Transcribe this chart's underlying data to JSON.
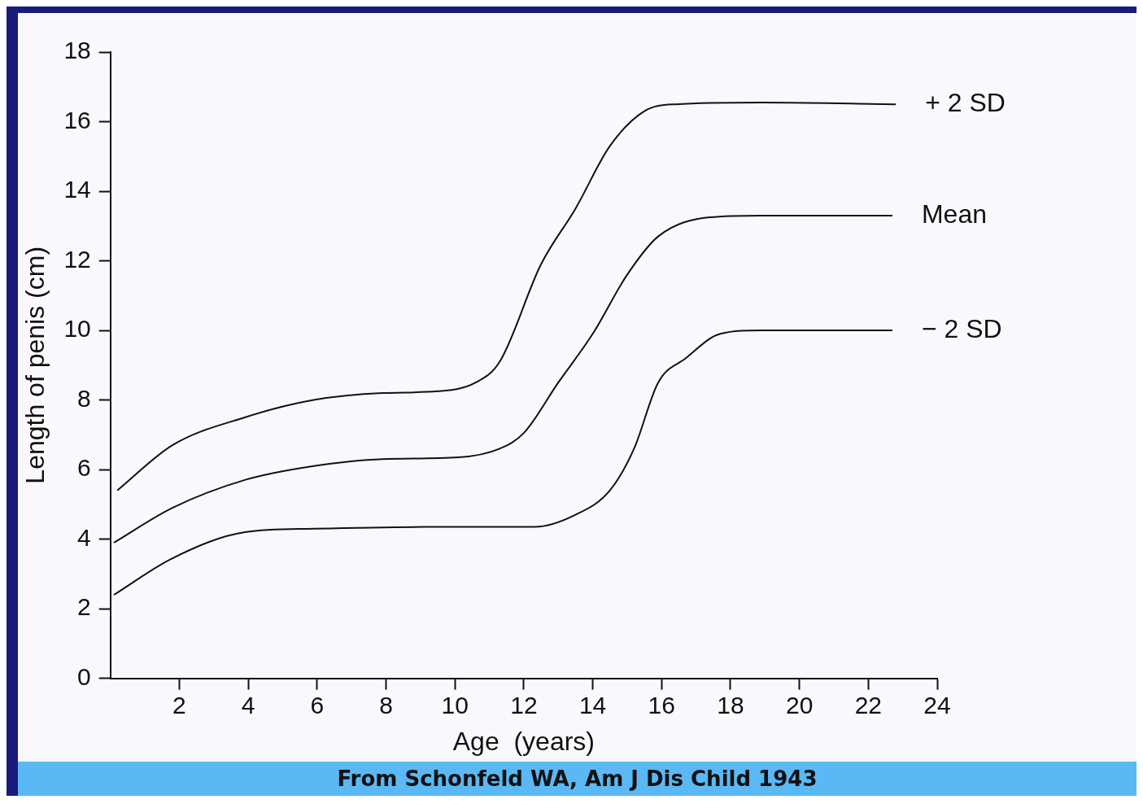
{
  "chart_data": {
    "type": "line",
    "xlabel": "Age  (years)",
    "ylabel": "Length of penis (cm)",
    "xlim": [
      0,
      24
    ],
    "xticks": [
      2,
      4,
      6,
      8,
      10,
      12,
      14,
      16,
      18,
      20,
      22,
      24
    ],
    "ylim": [
      0,
      18
    ],
    "yticks": [
      0,
      2,
      4,
      6,
      8,
      10,
      12,
      14,
      16,
      18
    ],
    "grid": false,
    "legend": false,
    "marker": "none",
    "line_style": "solid",
    "annotations": [
      "From Schonfeld WA, Am J Dis Child 1943"
    ],
    "series": [
      {
        "name": "+ 2 SD",
        "color": "#111111",
        "x": [
          0.2,
          1.8,
          3.9,
          5.9,
          7.9,
          9.5,
          10.6,
          11.3,
          12.5,
          13.5,
          14.5,
          15.5,
          16.4,
          18.9,
          22.8
        ],
        "values": [
          5.4,
          6.7,
          7.5,
          8.0,
          8.2,
          8.25,
          8.5,
          9.1,
          11.9,
          13.5,
          15.3,
          16.3,
          16.5,
          16.55,
          16.5
        ]
      },
      {
        "name": "Mean",
        "color": "#111111",
        "x": [
          0.1,
          1.8,
          3.9,
          5.9,
          7.9,
          10.1,
          11.3,
          12,
          13,
          14,
          15,
          15.9,
          17.4,
          18.9,
          22.7
        ],
        "values": [
          3.9,
          4.9,
          5.7,
          6.1,
          6.3,
          6.35,
          6.6,
          7.05,
          8.5,
          9.9,
          11.6,
          12.7,
          13.25,
          13.3,
          13.3
        ]
      },
      {
        "name": "− 2 SD",
        "color": "#111111",
        "x": [
          0.1,
          1.8,
          3.9,
          5.9,
          9.1,
          12.3,
          13.5,
          14.5,
          15.2,
          15.9,
          16.7,
          17.7,
          18.9,
          22.7
        ],
        "values": [
          2.4,
          3.45,
          4.2,
          4.3,
          4.35,
          4.35,
          4.7,
          5.4,
          6.6,
          8.5,
          9.2,
          9.9,
          10.0,
          10.0
        ]
      }
    ]
  }
}
